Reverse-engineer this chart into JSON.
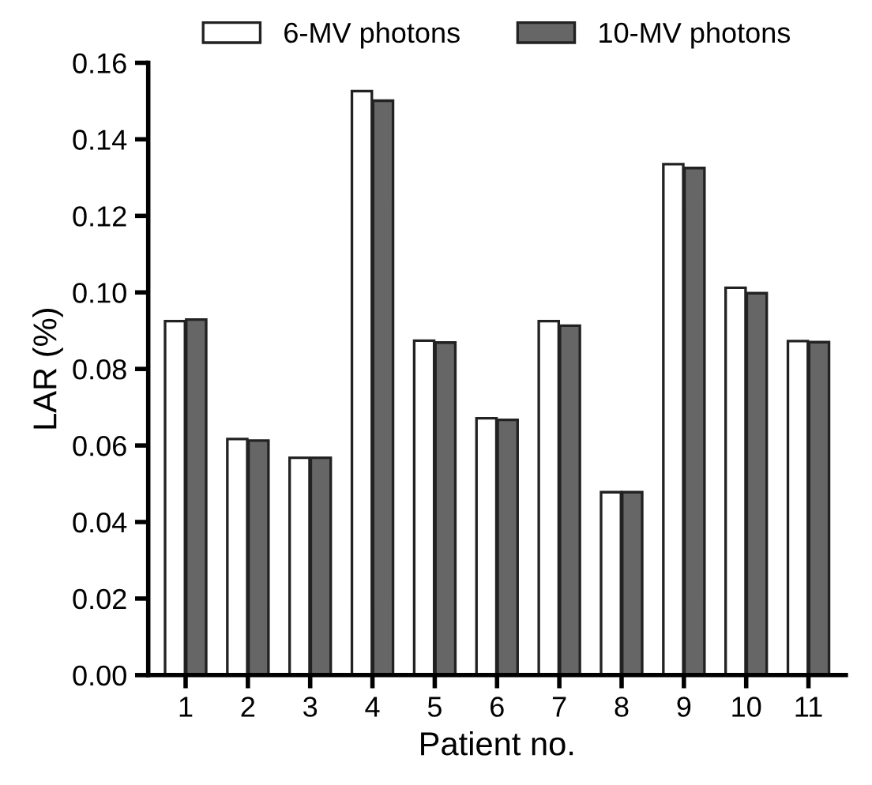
{
  "chart_data": {
    "type": "bar",
    "xlabel": "Patient no.",
    "ylabel": "LAR (%)",
    "categories": [
      "1",
      "2",
      "3",
      "4",
      "5",
      "6",
      "7",
      "8",
      "9",
      "10",
      "11"
    ],
    "series": [
      {
        "name": "6-MV photons",
        "color": "#ffffff",
        "values": [
          0.0925,
          0.0617,
          0.0568,
          0.1526,
          0.0874,
          0.0671,
          0.0925,
          0.0478,
          0.1335,
          0.1012,
          0.0873
        ]
      },
      {
        "name": "10-MV photons",
        "color": "#666666",
        "values": [
          0.0929,
          0.0613,
          0.0568,
          0.1501,
          0.0869,
          0.0667,
          0.0913,
          0.0478,
          0.1325,
          0.0998,
          0.087
        ]
      }
    ],
    "ylim": [
      0,
      0.16
    ],
    "yticks": [
      {
        "value": 0,
        "label": "0.00"
      },
      {
        "value": 0.02,
        "label": "0.02"
      },
      {
        "value": 0.04,
        "label": "0.04"
      },
      {
        "value": 0.06,
        "label": "0.06"
      },
      {
        "value": 0.08,
        "label": "0.08"
      },
      {
        "value": 0.1,
        "label": "0.10"
      },
      {
        "value": 0.12,
        "label": "0.12"
      },
      {
        "value": 0.14,
        "label": "0.14"
      },
      {
        "value": 0.16,
        "label": "0.16"
      }
    ],
    "grid": false,
    "legend": "top"
  }
}
